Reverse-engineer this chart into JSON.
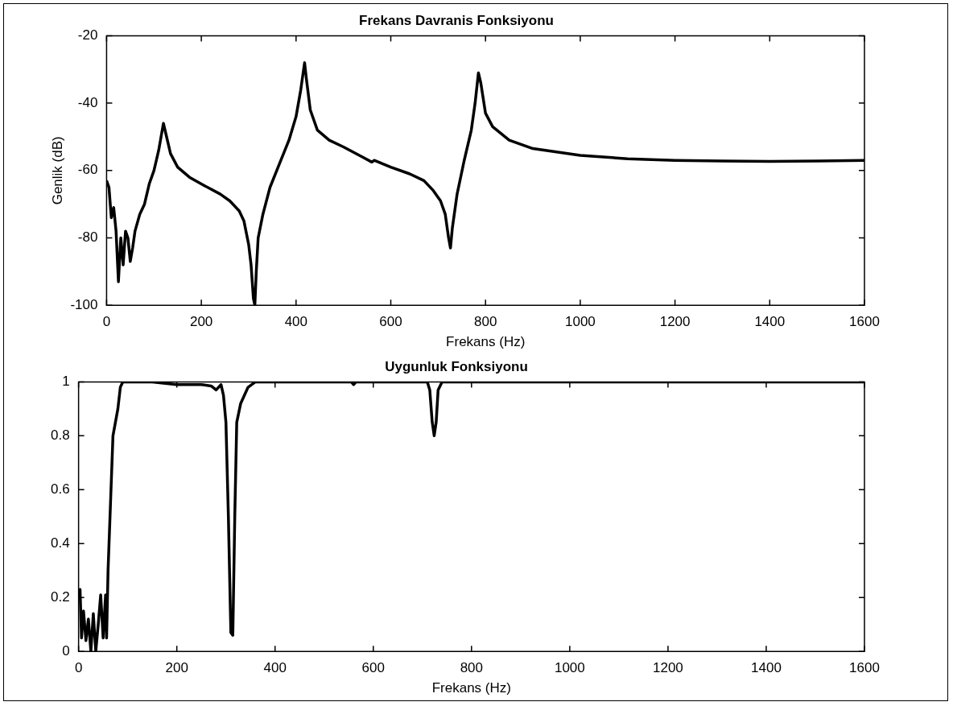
{
  "chart_data": [
    {
      "type": "line",
      "title": "Frekans Davranis Fonksiyonu",
      "xlabel": "Frekans (Hz)",
      "ylabel": "Genlik (dB)",
      "xlim": [
        0,
        1600
      ],
      "xticks": [
        0,
        200,
        400,
        600,
        800,
        1000,
        1200,
        1400,
        1600
      ],
      "ylim": [
        -100,
        -20
      ],
      "yticks": [
        -100,
        -80,
        -60,
        -40,
        -20
      ],
      "x": [
        0,
        5,
        10,
        15,
        20,
        25,
        30,
        35,
        40,
        45,
        50,
        55,
        60,
        70,
        80,
        90,
        100,
        110,
        115,
        120,
        125,
        135,
        150,
        175,
        200,
        240,
        260,
        280,
        290,
        300,
        305,
        310,
        313,
        316,
        320,
        330,
        345,
        365,
        385,
        400,
        410,
        418,
        422,
        430,
        445,
        470,
        500,
        540,
        560,
        565,
        600,
        640,
        670,
        690,
        705,
        715,
        722,
        726,
        730,
        740,
        755,
        770,
        778,
        785,
        790,
        800,
        815,
        850,
        900,
        1000,
        1100,
        1200,
        1300,
        1400,
        1500,
        1600
      ],
      "series": [
        {
          "color": "#000000",
          "values": [
            -63,
            -65,
            -74,
            -71,
            -78,
            -93,
            -80,
            -88,
            -78,
            -80,
            -87,
            -83,
            -78,
            -73,
            -70,
            -64,
            -60,
            -54,
            -50,
            -46,
            -49,
            -55,
            -59,
            -62,
            -64,
            -67,
            -69,
            -72,
            -75,
            -82,
            -88,
            -98,
            -100,
            -90,
            -80,
            -73,
            -65,
            -58,
            -51,
            -44,
            -36,
            -28,
            -33,
            -42,
            -48,
            -51,
            -53,
            -56,
            -57.5,
            -57,
            -59,
            -61,
            -63,
            -66,
            -69,
            -73,
            -80,
            -83,
            -77,
            -67,
            -57,
            -48,
            -40,
            -31,
            -34,
            -43,
            -47,
            -51,
            -53.5,
            -55.5,
            -56.5,
            -57,
            -57.2,
            -57.3,
            -57.2,
            -57
          ]
        }
      ]
    },
    {
      "type": "line",
      "title": "Uygunluk Fonksiyonu",
      "xlabel": "Frekans (Hz)",
      "xlim": [
        0,
        1600
      ],
      "xticks": [
        0,
        200,
        400,
        600,
        800,
        1000,
        1200,
        1400,
        1600
      ],
      "ylim": [
        0,
        1
      ],
      "yticks": [
        0,
        0.2,
        0.4,
        0.6,
        0.8,
        1
      ],
      "x": [
        0,
        3,
        6,
        10,
        15,
        20,
        25,
        30,
        35,
        40,
        45,
        50,
        55,
        57,
        60,
        65,
        70,
        75,
        80,
        85,
        90,
        150,
        200,
        250,
        270,
        280,
        290,
        295,
        300,
        305,
        310,
        314,
        318,
        322,
        330,
        345,
        360,
        555,
        560,
        565,
        710,
        715,
        720,
        724,
        728,
        732,
        740,
        1600
      ],
      "series": [
        {
          "color": "#000000",
          "values": [
            0.2,
            0.23,
            0.05,
            0.15,
            0.04,
            0.12,
            0.0,
            0.14,
            0.0,
            0.1,
            0.21,
            0.05,
            0.21,
            0.05,
            0.3,
            0.55,
            0.8,
            0.85,
            0.9,
            0.98,
            1.0,
            1.0,
            0.99,
            0.99,
            0.985,
            0.97,
            0.99,
            0.95,
            0.85,
            0.5,
            0.07,
            0.06,
            0.5,
            0.85,
            0.92,
            0.98,
            1.0,
            1.0,
            0.99,
            1.0,
            1.0,
            0.97,
            0.85,
            0.8,
            0.85,
            0.97,
            1.0,
            1.0
          ]
        }
      ]
    }
  ]
}
